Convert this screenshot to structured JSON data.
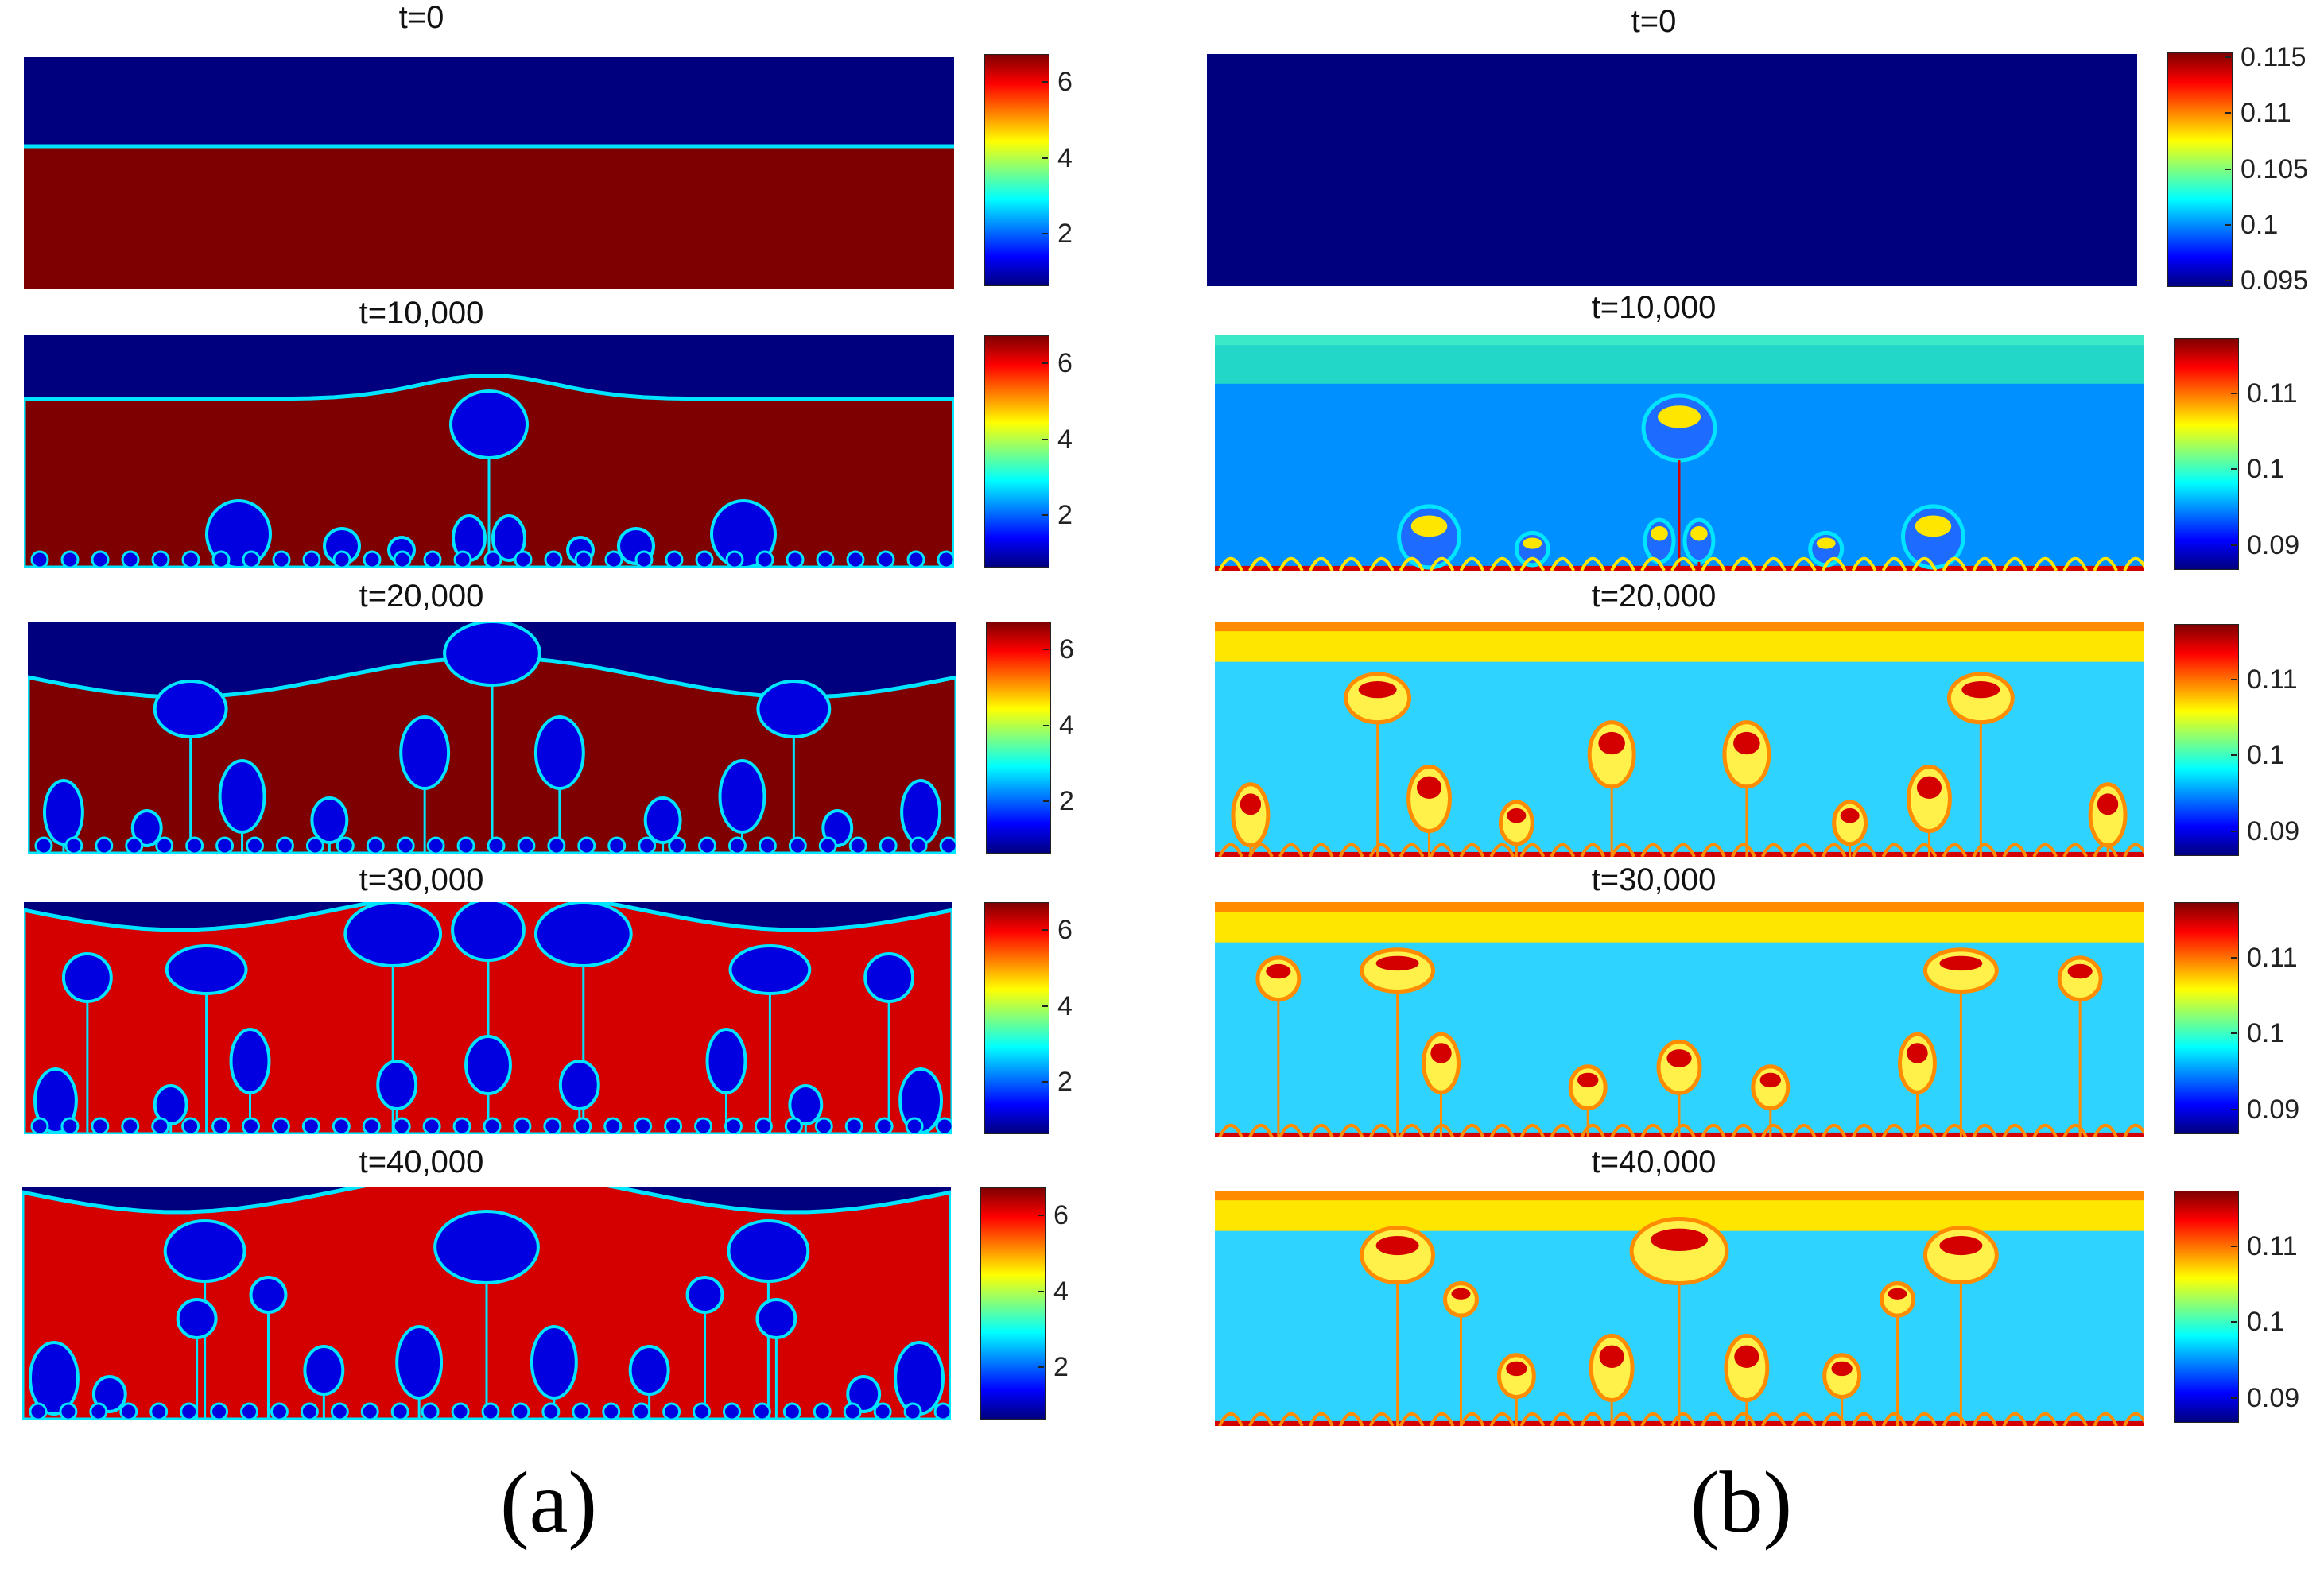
{
  "figure": {
    "column_a": {
      "label": "(a)",
      "colorbar_ticks": [
        "6",
        "4",
        "2"
      ],
      "rows": [
        {
          "title": "t=0",
          "stage": 0
        },
        {
          "title": "t=10,000",
          "stage": 1
        },
        {
          "title": "t=20,000",
          "stage": 2
        },
        {
          "title": "t=30,000",
          "stage": 3
        },
        {
          "title": "t=40,000",
          "stage": 4
        }
      ]
    },
    "column_b": {
      "label": "(b)",
      "rows": [
        {
          "title": "t=0",
          "stage": 0,
          "colorbar_ticks": [
            "0.115",
            "0.11",
            "0.105",
            "0.1",
            "0.095"
          ]
        },
        {
          "title": "t=10,000",
          "stage": 1,
          "colorbar_ticks": [
            "0.11",
            "0.1",
            "0.09"
          ]
        },
        {
          "title": "t=20,000",
          "stage": 2,
          "colorbar_ticks": [
            "0.11",
            "0.1",
            "0.09"
          ]
        },
        {
          "title": "t=30,000",
          "stage": 3,
          "colorbar_ticks": [
            "0.11",
            "0.1",
            "0.09"
          ]
        },
        {
          "title": "t=40,000",
          "stage": 4,
          "colorbar_ticks": [
            "0.11",
            "0.1",
            "0.09"
          ]
        }
      ]
    },
    "colors": {
      "dark_red": "#7f0000",
      "red": "#d40000",
      "dark_blue": "#00007f",
      "blue": "#0000e0",
      "cyan": "#00e5ff",
      "mid_blue": "#0090ff",
      "yellow": "#ffe600",
      "light_yellow": "#fff04a",
      "orange": "#ff8c00"
    }
  }
}
